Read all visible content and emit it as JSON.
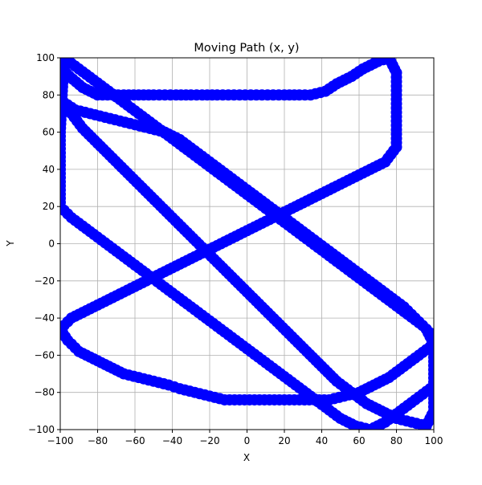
{
  "chart_data": {
    "type": "scatter",
    "title": "Moving Path (x, y)",
    "xlabel": "X",
    "ylabel": "Y",
    "xlim": [
      -100,
      100
    ],
    "ylim": [
      -100,
      100
    ],
    "xticks": [
      "−100",
      "−80",
      "−60",
      "−40",
      "−20",
      "0",
      "20",
      "40",
      "60",
      "80",
      "100"
    ],
    "yticks": [
      "−100",
      "−80",
      "−60",
      "−40",
      "−20",
      "0",
      "20",
      "40",
      "60",
      "80",
      "100"
    ],
    "grid": true,
    "marker": "circle",
    "color": "#0000ff",
    "series": [
      {
        "x": [
          -100,
          -95,
          -88,
          -80,
          -72,
          -66,
          -58,
          -50,
          -44,
          -38,
          -30,
          -24,
          -16,
          -10,
          -4,
          2,
          8,
          14,
          20,
          28,
          34,
          42,
          48,
          56,
          62,
          70,
          76,
          80,
          80,
          80,
          80,
          74,
          66,
          58,
          50,
          42,
          34,
          26,
          18,
          10,
          2,
          -6,
          -14,
          -22,
          -30,
          -38,
          -46,
          -54,
          -62,
          -70,
          -78,
          -86,
          -94,
          -100,
          -96,
          -90,
          -82,
          -74,
          -66,
          -58,
          -50,
          -42,
          -36,
          -28,
          -20,
          -12,
          -4,
          4,
          12,
          20,
          28,
          36,
          44,
          52,
          60,
          68,
          76,
          84,
          92,
          100,
          96,
          90,
          84,
          76,
          68,
          60,
          52,
          44,
          36,
          28,
          20,
          12,
          4,
          -4,
          -12,
          -20,
          -28,
          -36,
          -44,
          -52,
          -60,
          -68,
          -76,
          -84,
          -92,
          -98,
          -94,
          -88,
          -80,
          -72,
          -64,
          -56,
          -48,
          -40,
          -32,
          -24,
          -16,
          -8,
          0,
          8,
          16,
          24,
          32,
          40,
          48,
          56,
          64,
          72,
          80,
          88,
          96,
          100,
          100,
          100,
          94,
          86,
          78,
          70,
          62,
          54,
          46,
          38,
          30,
          22,
          14,
          6,
          -2,
          -10,
          -18,
          -26,
          -34,
          -42,
          -50,
          -58,
          -66,
          -74,
          -82,
          -90,
          -98,
          -100,
          -100,
          -94,
          -86,
          -78,
          -70,
          -62,
          -54,
          -46,
          -38,
          -30,
          -22,
          -14,
          -6,
          2,
          10,
          18,
          26,
          34,
          42,
          50,
          58,
          66,
          74,
          82,
          90,
          98
        ],
        "y": [
          95,
          90,
          84,
          80,
          80,
          80,
          80,
          80,
          80,
          80,
          80,
          80,
          80,
          80,
          80,
          80,
          80,
          80,
          80,
          80,
          80,
          82,
          86,
          90,
          94,
          98,
          100,
          92,
          80,
          66,
          52,
          44,
          40,
          36,
          32,
          28,
          24,
          20,
          16,
          12,
          8,
          4,
          0,
          -4,
          -8,
          -12,
          -16,
          -20,
          -24,
          -28,
          -32,
          -36,
          -40,
          -46,
          -52,
          -58,
          -62,
          -66,
          -70,
          -72,
          -74,
          -76,
          -78,
          -80,
          -82,
          -84,
          -84,
          -84,
          -84,
          -84,
          -84,
          -84,
          -84,
          -82,
          -80,
          -76,
          -72,
          -66,
          -60,
          -54,
          -46,
          -40,
          -34,
          -28,
          -22,
          -16,
          -10,
          -4,
          2,
          8,
          14,
          20,
          26,
          32,
          38,
          44,
          50,
          56,
          60,
          62,
          64,
          66,
          68,
          70,
          72,
          76,
          70,
          62,
          54,
          46,
          38,
          30,
          22,
          14,
          6,
          -2,
          -10,
          -18,
          -26,
          -34,
          -42,
          -50,
          -58,
          -66,
          -74,
          -80,
          -86,
          -90,
          -94,
          -96,
          -98,
          -90,
          -70,
          -50,
          -44,
          -38,
          -32,
          -26,
          -20,
          -14,
          -8,
          -2,
          4,
          10,
          16,
          22,
          28,
          34,
          40,
          46,
          52,
          58,
          64,
          70,
          76,
          82,
          88,
          94,
          100,
          60,
          20,
          14,
          8,
          2,
          -4,
          -10,
          -16,
          -22,
          -28,
          -34,
          -40,
          -46,
          -52,
          -58,
          -64,
          -70,
          -76,
          -82,
          -88,
          -94,
          -98,
          -100,
          -96,
          -90,
          -84,
          -78
        ]
      }
    ]
  }
}
